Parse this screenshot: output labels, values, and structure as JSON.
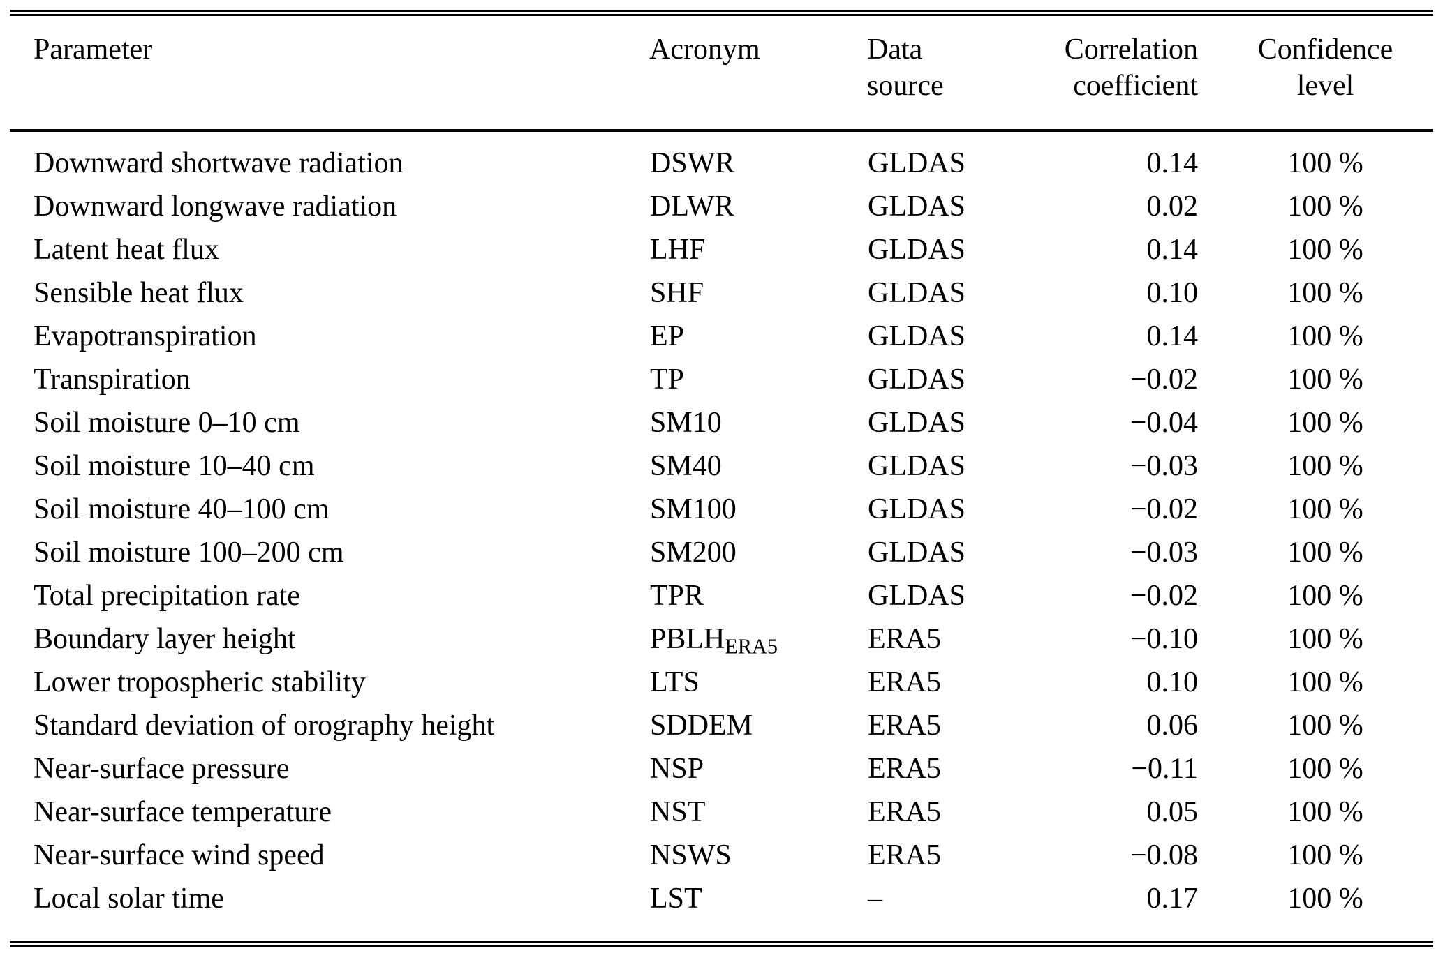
{
  "colors": {
    "background": "#ffffff",
    "text": "#000000",
    "rule": "#000000"
  },
  "table": {
    "columns": [
      {
        "line1": "Parameter",
        "line2": ""
      },
      {
        "line1": "Acronym",
        "line2": ""
      },
      {
        "line1": "Data",
        "line2": "source"
      },
      {
        "line1": "Correlation",
        "line2": "coefficient"
      },
      {
        "line1": "Confidence",
        "line2": "level"
      }
    ],
    "rows": [
      {
        "parameter": "Downward shortwave radiation",
        "acronym": "DSWR",
        "acronym_sub": "",
        "source": "GLDAS",
        "correlation": "0.14",
        "confidence": "100 %"
      },
      {
        "parameter": "Downward longwave radiation",
        "acronym": "DLWR",
        "acronym_sub": "",
        "source": "GLDAS",
        "correlation": "0.02",
        "confidence": "100 %"
      },
      {
        "parameter": "Latent heat flux",
        "acronym": "LHF",
        "acronym_sub": "",
        "source": "GLDAS",
        "correlation": "0.14",
        "confidence": "100 %"
      },
      {
        "parameter": "Sensible heat flux",
        "acronym": "SHF",
        "acronym_sub": "",
        "source": "GLDAS",
        "correlation": "0.10",
        "confidence": "100 %"
      },
      {
        "parameter": "Evapotranspiration",
        "acronym": "EP",
        "acronym_sub": "",
        "source": "GLDAS",
        "correlation": "0.14",
        "confidence": "100 %"
      },
      {
        "parameter": "Transpiration",
        "acronym": "TP",
        "acronym_sub": "",
        "source": "GLDAS",
        "correlation": "−0.02",
        "confidence": "100 %"
      },
      {
        "parameter": "Soil moisture 0–10 cm",
        "acronym": "SM10",
        "acronym_sub": "",
        "source": "GLDAS",
        "correlation": "−0.04",
        "confidence": "100 %"
      },
      {
        "parameter": "Soil moisture 10–40 cm",
        "acronym": "SM40",
        "acronym_sub": "",
        "source": "GLDAS",
        "correlation": "−0.03",
        "confidence": "100 %"
      },
      {
        "parameter": "Soil moisture 40–100 cm",
        "acronym": "SM100",
        "acronym_sub": "",
        "source": "GLDAS",
        "correlation": "−0.02",
        "confidence": "100 %"
      },
      {
        "parameter": "Soil moisture 100–200 cm",
        "acronym": "SM200",
        "acronym_sub": "",
        "source": "GLDAS",
        "correlation": "−0.03",
        "confidence": "100 %"
      },
      {
        "parameter": "Total precipitation rate",
        "acronym": "TPR",
        "acronym_sub": "",
        "source": "GLDAS",
        "correlation": "−0.02",
        "confidence": "100 %"
      },
      {
        "parameter": "Boundary layer height",
        "acronym": "PBLH",
        "acronym_sub": "ERA5",
        "source": "ERA5",
        "correlation": "−0.10",
        "confidence": "100 %"
      },
      {
        "parameter": "Lower tropospheric stability",
        "acronym": "LTS",
        "acronym_sub": "",
        "source": "ERA5",
        "correlation": "0.10",
        "confidence": "100 %"
      },
      {
        "parameter": "Standard deviation of orography height",
        "acronym": "SDDEM",
        "acronym_sub": "",
        "source": "ERA5",
        "correlation": "0.06",
        "confidence": "100 %"
      },
      {
        "parameter": "Near-surface pressure",
        "acronym": "NSP",
        "acronym_sub": "",
        "source": "ERA5",
        "correlation": "−0.11",
        "confidence": "100 %"
      },
      {
        "parameter": "Near-surface temperature",
        "acronym": "NST",
        "acronym_sub": "",
        "source": "ERA5",
        "correlation": "0.05",
        "confidence": "100 %"
      },
      {
        "parameter": "Near-surface wind speed",
        "acronym": "NSWS",
        "acronym_sub": "",
        "source": "ERA5",
        "correlation": "−0.08",
        "confidence": "100 %"
      },
      {
        "parameter": "Local solar time",
        "acronym": "LST",
        "acronym_sub": "",
        "source": "–",
        "correlation": "0.17",
        "confidence": "100 %"
      }
    ]
  }
}
